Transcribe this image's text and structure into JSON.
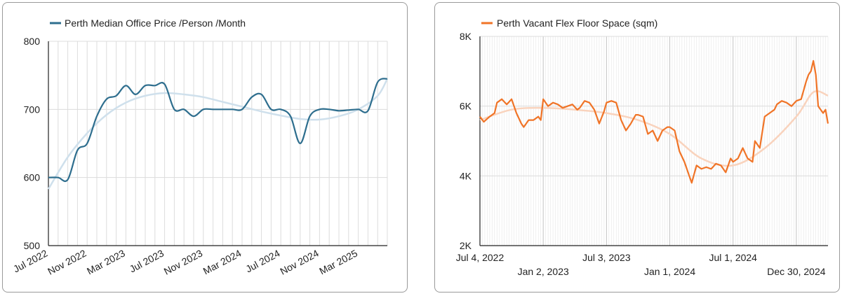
{
  "chart_data": [
    {
      "type": "line",
      "legend": {
        "label": "Perth Median Office Price /Person /Month",
        "position": "top-left",
        "color": "#2e6e8e"
      },
      "trend_color": "#cfe0ec",
      "ylim": [
        500,
        800
      ],
      "yticks": [
        500,
        600,
        700,
        800
      ],
      "grid": true,
      "x_axis": {
        "start": "2022-07",
        "end": "2025-06"
      },
      "xticks": [
        {
          "label": "Jul 2022",
          "at": "2022-07"
        },
        {
          "label": "Nov 2022",
          "at": "2022-11"
        },
        {
          "label": "Mar 2023",
          "at": "2023-03"
        },
        {
          "label": "Jul 2023",
          "at": "2023-07"
        },
        {
          "label": "Nov 2023",
          "at": "2023-11"
        },
        {
          "label": "Mar 2024",
          "at": "2024-03"
        },
        {
          "label": "Jul 2024",
          "at": "2024-07"
        },
        {
          "label": "Nov 2024",
          "at": "2024-11"
        },
        {
          "label": "Mar 2025",
          "at": "2025-03"
        }
      ],
      "series": [
        {
          "name": "Perth Median Office Price /Person /Month",
          "x": [
            "2022-07",
            "2022-08",
            "2022-09",
            "2022-10",
            "2022-11",
            "2022-12",
            "2023-01",
            "2023-02",
            "2023-03",
            "2023-04",
            "2023-05",
            "2023-06",
            "2023-07",
            "2023-08",
            "2023-09",
            "2023-10",
            "2023-11",
            "2023-12",
            "2024-01",
            "2024-02",
            "2024-03",
            "2024-04",
            "2024-05",
            "2024-06",
            "2024-07",
            "2024-08",
            "2024-09",
            "2024-10",
            "2024-11",
            "2024-12",
            "2025-01",
            "2025-02",
            "2025-03",
            "2025-04",
            "2025-05",
            "2025-06"
          ],
          "values": [
            600,
            600,
            597,
            640,
            650,
            690,
            715,
            720,
            735,
            722,
            735,
            735,
            737,
            700,
            700,
            690,
            700,
            700,
            700,
            700,
            700,
            718,
            722,
            700,
            700,
            690,
            650,
            690,
            700,
            700,
            698,
            699,
            700,
            698,
            740,
            745
          ]
        },
        {
          "name": "trend",
          "x": [
            "2022-07",
            "2022-09",
            "2022-11",
            "2023-01",
            "2023-03",
            "2023-05",
            "2023-07",
            "2023-09",
            "2023-11",
            "2024-01",
            "2024-03",
            "2024-05",
            "2024-07",
            "2024-09",
            "2024-11",
            "2025-01",
            "2025-03",
            "2025-05",
            "2025-06"
          ],
          "values": [
            583,
            630,
            665,
            692,
            710,
            720,
            724,
            722,
            718,
            711,
            704,
            697,
            691,
            686,
            685,
            690,
            700,
            720,
            745
          ]
        }
      ]
    },
    {
      "type": "line",
      "legend": {
        "label": "Perth Vacant Flex Floor Space (sqm)",
        "position": "top-left",
        "color": "#f07427"
      },
      "trend_color": "#f9d3bd",
      "ylim": [
        2000,
        8000
      ],
      "yticks": [
        {
          "label": "2K",
          "value": 2000
        },
        {
          "label": "4K",
          "value": 4000
        },
        {
          "label": "6K",
          "value": 6000
        },
        {
          "label": "8K",
          "value": 8000
        }
      ],
      "grid": true,
      "x_axis": {
        "start": "2022-07-04",
        "end": "2025-03-31"
      },
      "xticks": [
        {
          "label": "Jul 4, 2022",
          "at": "2022-07-04",
          "row": 1
        },
        {
          "label": "Jan 2, 2023",
          "at": "2023-01-02",
          "row": 2
        },
        {
          "label": "Jul 3, 2023",
          "at": "2023-07-03",
          "row": 1
        },
        {
          "label": "Jan 1, 2024",
          "at": "2024-01-01",
          "row": 2
        },
        {
          "label": "Jul 1, 2024",
          "at": "2024-07-01",
          "row": 1
        },
        {
          "label": "Dec 30, 2024",
          "at": "2024-12-30",
          "row": 2
        }
      ],
      "series": [
        {
          "name": "Perth Vacant Flex Floor Space (sqm)",
          "x": [
            "2022-07-04",
            "2022-07-15",
            "2022-08-01",
            "2022-08-15",
            "2022-08-22",
            "2022-09-05",
            "2022-09-19",
            "2022-10-03",
            "2022-10-17",
            "2022-10-31",
            "2022-11-07",
            "2022-11-21",
            "2022-12-05",
            "2022-12-19",
            "2022-12-26",
            "2023-01-02",
            "2023-01-16",
            "2023-01-30",
            "2023-02-13",
            "2023-02-27",
            "2023-03-13",
            "2023-03-27",
            "2023-04-10",
            "2023-04-17",
            "2023-05-01",
            "2023-05-15",
            "2023-05-29",
            "2023-06-12",
            "2023-06-26",
            "2023-07-03",
            "2023-07-17",
            "2023-07-31",
            "2023-08-14",
            "2023-08-28",
            "2023-09-11",
            "2023-09-25",
            "2023-10-02",
            "2023-10-16",
            "2023-10-30",
            "2023-11-13",
            "2023-11-27",
            "2023-12-11",
            "2023-12-25",
            "2024-01-01",
            "2024-01-15",
            "2024-01-29",
            "2024-02-12",
            "2024-02-26",
            "2024-03-04",
            "2024-03-18",
            "2024-04-01",
            "2024-04-15",
            "2024-04-29",
            "2024-05-13",
            "2024-05-27",
            "2024-06-10",
            "2024-06-24",
            "2024-07-01",
            "2024-07-15",
            "2024-07-29",
            "2024-08-12",
            "2024-08-26",
            "2024-09-02",
            "2024-09-16",
            "2024-09-30",
            "2024-10-14",
            "2024-10-28",
            "2024-11-04",
            "2024-11-18",
            "2024-12-02",
            "2024-12-16",
            "2024-12-30",
            "2025-01-13",
            "2025-01-27",
            "2025-02-03",
            "2025-02-10",
            "2025-02-17",
            "2025-02-24",
            "2025-03-03",
            "2025-03-10",
            "2025-03-17",
            "2025-03-24",
            "2025-03-31"
          ],
          "values": [
            5700,
            5550,
            5700,
            5800,
            6100,
            6200,
            6050,
            6200,
            5800,
            5500,
            5400,
            5600,
            5600,
            5700,
            5600,
            6200,
            6000,
            6100,
            6050,
            5950,
            6000,
            6050,
            5900,
            5950,
            6150,
            6100,
            5900,
            5500,
            5850,
            6100,
            6150,
            6100,
            5600,
            5300,
            5500,
            5750,
            5750,
            5700,
            5200,
            5300,
            5000,
            5300,
            5400,
            5400,
            5300,
            4700,
            4400,
            4000,
            3800,
            4300,
            4200,
            4250,
            4200,
            4350,
            4300,
            4100,
            4500,
            4400,
            4500,
            4800,
            4500,
            4400,
            5000,
            4800,
            5700,
            5800,
            5900,
            6050,
            6150,
            6100,
            6000,
            6150,
            6200,
            6700,
            6900,
            7000,
            7300,
            6900,
            6000,
            5900,
            5800,
            5900,
            5500
          ]
        },
        {
          "name": "trend",
          "x": [
            "2022-07-04",
            "2022-10-03",
            "2023-01-02",
            "2023-04-03",
            "2023-07-03",
            "2023-10-02",
            "2024-01-01",
            "2024-04-01",
            "2024-07-01",
            "2024-10-01",
            "2024-12-30",
            "2025-02-17",
            "2025-03-31"
          ],
          "values": [
            5600,
            5900,
            5950,
            5900,
            5800,
            5600,
            5200,
            4500,
            4300,
            4800,
            5700,
            6400,
            6300
          ]
        }
      ]
    }
  ]
}
